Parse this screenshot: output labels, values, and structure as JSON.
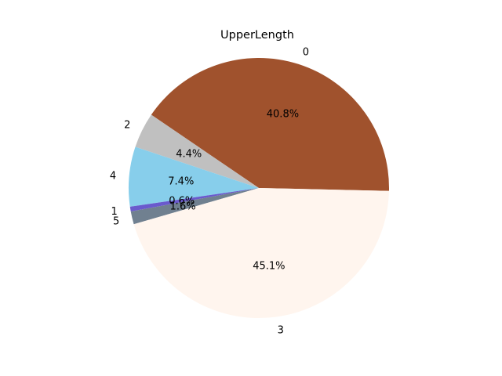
{
  "chart_data": {
    "type": "pie",
    "title": "UpperLength",
    "start_angle_deg": 0,
    "direction": "counterclockwise",
    "slices": [
      {
        "label": "0",
        "value": 40.8,
        "pct_label": "40.8%",
        "color": "#a0522d"
      },
      {
        "label": "2",
        "value": 4.4,
        "pct_label": "4.4%",
        "color": "#c0c0c0"
      },
      {
        "label": "4",
        "value": 7.4,
        "pct_label": "7.4%",
        "color": "#87ceeb"
      },
      {
        "label": "1",
        "value": 0.6,
        "pct_label": "0.6%",
        "color": "#6a5acd"
      },
      {
        "label": "5",
        "value": 1.6,
        "pct_label": "1.6%",
        "color": "#708090"
      },
      {
        "label": "3",
        "value": 45.1,
        "pct_label": "45.1%",
        "color": "#fff5ee"
      }
    ]
  }
}
